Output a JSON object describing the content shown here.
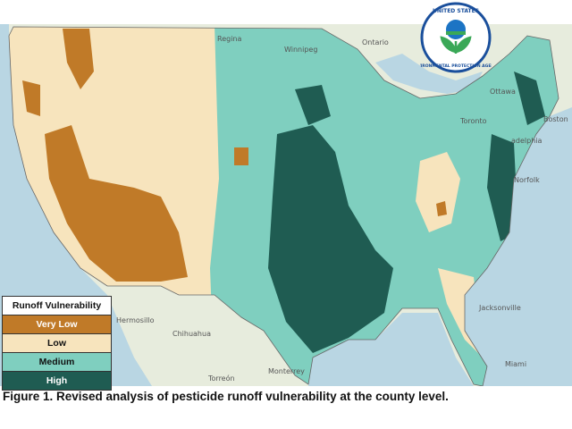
{
  "map": {
    "places": [
      {
        "name": "Regina"
      },
      {
        "name": "Winnipeg"
      },
      {
        "name": "Ontario"
      },
      {
        "name": "Ottawa"
      },
      {
        "name": "Toronto"
      },
      {
        "name": "Boston"
      },
      {
        "name": "adelphia"
      },
      {
        "name": "Norfolk"
      },
      {
        "name": "Jacksonville"
      },
      {
        "name": "Miami"
      },
      {
        "name": "Hermosillo"
      },
      {
        "name": "Chihuahua"
      },
      {
        "name": "Torreón"
      },
      {
        "name": "Monterrey"
      }
    ]
  },
  "legend": {
    "title": "Runoff Vulnerability",
    "items": [
      {
        "label": "Very Low",
        "color": "#c07a28"
      },
      {
        "label": "Low",
        "color": "#f7e4bd"
      },
      {
        "label": "Medium",
        "color": "#7fcfbf"
      },
      {
        "label": "High",
        "color": "#1f5c52"
      }
    ]
  },
  "logo": {
    "text": "UNITED STATES ENVIRONMENTAL PROTECTION AGENCY"
  },
  "caption": "Figure 1. Revised analysis of pesticide runoff vulnerability at the county level."
}
